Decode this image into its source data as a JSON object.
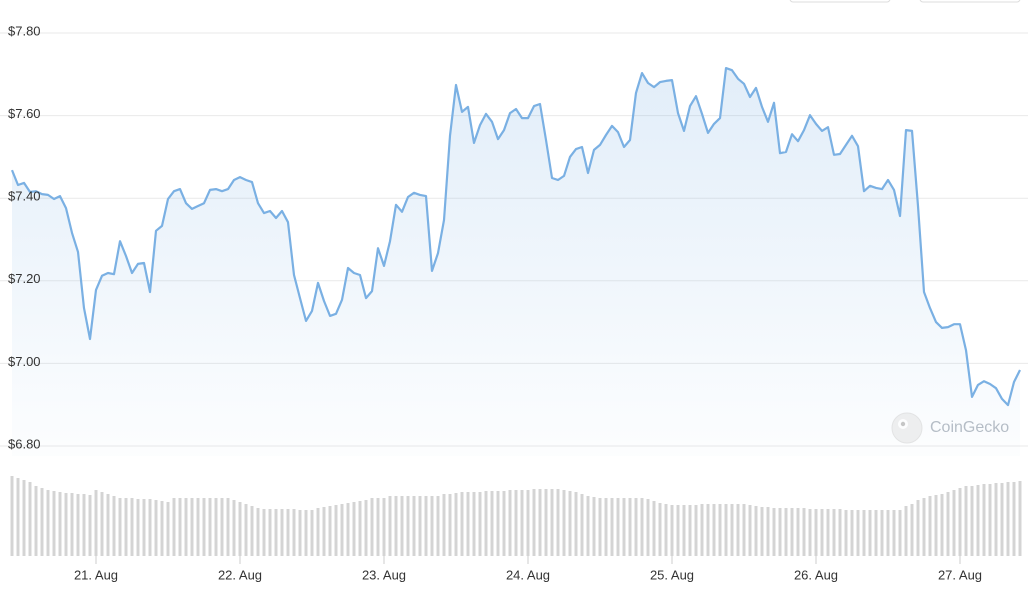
{
  "chart_data": {
    "type": "line",
    "color": "#7ab0e3",
    "volume_color": "#d4d4d4",
    "watermark": "CoinGecko",
    "grid": true,
    "ylim": [
      6.8,
      7.8
    ],
    "yticks": [
      {
        "value": 6.8,
        "label": "$6.80"
      },
      {
        "value": 7.0,
        "label": "$7.00"
      },
      {
        "value": 7.2,
        "label": "$7.20"
      },
      {
        "value": 7.4,
        "label": "$7.40"
      },
      {
        "value": 7.6,
        "label": "$7.60"
      },
      {
        "value": 7.8,
        "label": "$7.80"
      }
    ],
    "categories": [
      null,
      null,
      null,
      null,
      null,
      null,
      null,
      null,
      null,
      null,
      null,
      null,
      null,
      null,
      "21. Aug",
      null,
      null,
      null,
      null,
      null,
      null,
      null,
      null,
      null,
      null,
      null,
      null,
      null,
      null,
      null,
      null,
      null,
      null,
      null,
      null,
      null,
      null,
      null,
      "22. Aug",
      null,
      null,
      null,
      null,
      null,
      null,
      null,
      null,
      null,
      null,
      null,
      null,
      null,
      null,
      null,
      null,
      null,
      null,
      null,
      null,
      null,
      null,
      null,
      "23. Aug",
      null,
      null,
      null,
      null,
      null,
      null,
      null,
      null,
      null,
      null,
      null,
      null,
      null,
      null,
      null,
      null,
      null,
      null,
      null,
      null,
      null,
      null,
      null,
      "24. Aug",
      null,
      null,
      null,
      null,
      null,
      null,
      null,
      null,
      null,
      null,
      null,
      null,
      null,
      null,
      null,
      null,
      null,
      null,
      null,
      null,
      null,
      null,
      null,
      "25. Aug",
      null,
      null,
      null,
      null,
      null,
      null,
      null,
      null,
      null,
      null,
      null,
      null,
      null,
      null,
      null,
      null,
      null,
      null,
      null,
      null,
      null,
      null,
      null,
      "26. Aug",
      null,
      null,
      null,
      null,
      null,
      null,
      null,
      null,
      null,
      null,
      null,
      null,
      null,
      null,
      null,
      null,
      null,
      null,
      null,
      null,
      null,
      null,
      null,
      "27. Aug",
      null,
      null,
      null,
      null,
      null,
      null,
      null,
      null,
      null,
      null
    ],
    "values": [
      7.468,
      7.432,
      7.437,
      7.415,
      7.417,
      7.41,
      7.408,
      7.398,
      7.405,
      7.376,
      7.316,
      7.27,
      7.134,
      7.059,
      7.178,
      7.212,
      7.219,
      7.216,
      7.296,
      7.26,
      7.219,
      7.241,
      7.243,
      7.173,
      7.321,
      7.333,
      7.398,
      7.417,
      7.422,
      7.388,
      7.374,
      7.381,
      7.388,
      7.42,
      7.422,
      7.417,
      7.422,
      7.444,
      7.451,
      7.444,
      7.439,
      7.388,
      7.364,
      7.369,
      7.352,
      7.369,
      7.342,
      7.214,
      7.158,
      7.103,
      7.127,
      7.195,
      7.151,
      7.115,
      7.12,
      7.154,
      7.231,
      7.219,
      7.214,
      7.158,
      7.175,
      7.279,
      7.236,
      7.296,
      7.384,
      7.367,
      7.403,
      7.413,
      7.408,
      7.405,
      7.224,
      7.267,
      7.347,
      7.551,
      7.674,
      7.609,
      7.621,
      7.534,
      7.577,
      7.604,
      7.585,
      7.543,
      7.565,
      7.606,
      7.616,
      7.594,
      7.594,
      7.623,
      7.628,
      7.541,
      7.449,
      7.444,
      7.454,
      7.5,
      7.519,
      7.524,
      7.461,
      7.517,
      7.529,
      7.553,
      7.575,
      7.56,
      7.524,
      7.541,
      7.655,
      7.703,
      7.679,
      7.669,
      7.681,
      7.684,
      7.686,
      7.606,
      7.563,
      7.623,
      7.647,
      7.604,
      7.558,
      7.58,
      7.594,
      7.715,
      7.71,
      7.689,
      7.677,
      7.645,
      7.667,
      7.621,
      7.585,
      7.631,
      7.509,
      7.512,
      7.555,
      7.538,
      7.565,
      7.601,
      7.58,
      7.563,
      7.572,
      7.505,
      7.507,
      7.529,
      7.551,
      7.526,
      7.417,
      7.43,
      7.425,
      7.422,
      7.444,
      7.42,
      7.357,
      7.565,
      7.563,
      7.381,
      7.173,
      7.134,
      7.1,
      7.086,
      7.088,
      7.095,
      7.095,
      7.032,
      6.919,
      6.948,
      6.957,
      6.95,
      6.94,
      6.914,
      6.899,
      6.955,
      6.984
    ],
    "volume": [
      80,
      78,
      76,
      74,
      70,
      68,
      66,
      65,
      64,
      63,
      63,
      62,
      62,
      61,
      66,
      64,
      62,
      60,
      58,
      58,
      58,
      57,
      57,
      57,
      56,
      55,
      54,
      58,
      58,
      58,
      58,
      58,
      58,
      58,
      58,
      58,
      58,
      56,
      54,
      52,
      50,
      48,
      47,
      47,
      47,
      47,
      47,
      47,
      46,
      46,
      46,
      48,
      49,
      50,
      51,
      52,
      53,
      54,
      55,
      56,
      58,
      58,
      58,
      60,
      60,
      60,
      60,
      60,
      60,
      60,
      60,
      60,
      62,
      62,
      63,
      64,
      64,
      64,
      64,
      65,
      65,
      65,
      65,
      66,
      66,
      66,
      66,
      67,
      67,
      67,
      67,
      67,
      66,
      65,
      64,
      62,
      60,
      59,
      58,
      58,
      58,
      58,
      58,
      58,
      58,
      58,
      57,
      55,
      53,
      52,
      51,
      51,
      51,
      51,
      51,
      52,
      52,
      52,
      52,
      52,
      52,
      52,
      52,
      51,
      50,
      49,
      49,
      48,
      48,
      48,
      48,
      48,
      48,
      47,
      47,
      47,
      47,
      47,
      47,
      46,
      46,
      46,
      46,
      46,
      46,
      46,
      46,
      46,
      46,
      50,
      52,
      56,
      58,
      60,
      61,
      62,
      64,
      66,
      68,
      70,
      70,
      71,
      72,
      72,
      73,
      73,
      74,
      74,
      75
    ]
  }
}
